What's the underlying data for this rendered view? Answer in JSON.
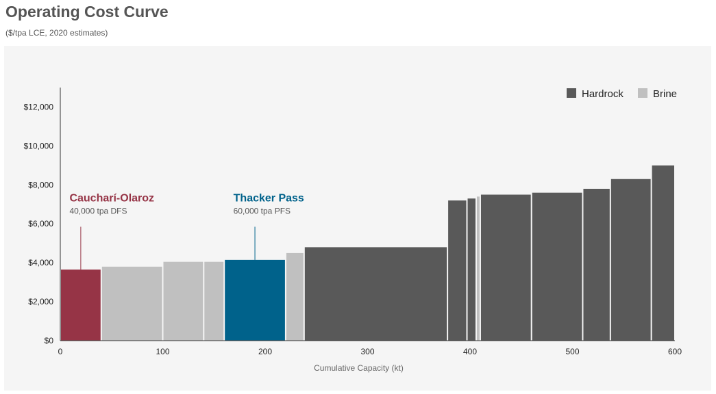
{
  "title": "Operating Cost Curve",
  "subtitle": "($/tpa LCE, 2020 estimates)",
  "chart_data": {
    "type": "bar",
    "variant": "cost-curve",
    "xlabel": "Cumulative Capacity (kt)",
    "ylabel": "",
    "xlim": [
      0,
      600
    ],
    "ylim": [
      0,
      13000
    ],
    "x_ticks": [
      0,
      100,
      200,
      300,
      400,
      500,
      600
    ],
    "y_ticks": [
      0,
      2000,
      4000,
      6000,
      8000,
      10000,
      12000
    ],
    "x_tick_labels": [
      "0",
      "100",
      "200",
      "300",
      "400",
      "500",
      "600"
    ],
    "y_tick_labels": [
      "$0",
      "$2,000",
      "$4,000",
      "$6,000",
      "$8,000",
      "$10,000",
      "$12,000"
    ],
    "grid": false,
    "legend_position": "top-right",
    "legend": [
      {
        "name": "Hardrock",
        "color": "#595959"
      },
      {
        "name": "Brine",
        "color": "#c0c0c0"
      }
    ],
    "colors": {
      "Hardrock": "#595959",
      "Brine": "#c0c0c0",
      "highlight_cauchari": "#963446",
      "highlight_thacker": "#00628b"
    },
    "bars": [
      {
        "x0": 0,
        "x1": 40,
        "value": 3650,
        "category": "Brine",
        "highlight": "highlight_cauchari"
      },
      {
        "x0": 40,
        "x1": 100,
        "value": 3800,
        "category": "Brine"
      },
      {
        "x0": 100,
        "x1": 140,
        "value": 4050,
        "category": "Brine"
      },
      {
        "x0": 140,
        "x1": 160,
        "value": 4050,
        "category": "Brine"
      },
      {
        "x0": 160,
        "x1": 220,
        "value": 4150,
        "category": "Hardrock",
        "highlight": "highlight_thacker"
      },
      {
        "x0": 220,
        "x1": 238,
        "value": 4500,
        "category": "Brine"
      },
      {
        "x0": 238,
        "x1": 378,
        "value": 4800,
        "category": "Hardrock"
      },
      {
        "x0": 378,
        "x1": 397,
        "value": 7200,
        "category": "Hardrock"
      },
      {
        "x0": 397,
        "x1": 406,
        "value": 7300,
        "category": "Hardrock"
      },
      {
        "x0": 406,
        "x1": 410,
        "value": 7400,
        "category": "Brine"
      },
      {
        "x0": 410,
        "x1": 460,
        "value": 7500,
        "category": "Hardrock"
      },
      {
        "x0": 460,
        "x1": 510,
        "value": 7600,
        "category": "Hardrock"
      },
      {
        "x0": 510,
        "x1": 537,
        "value": 7800,
        "category": "Hardrock"
      },
      {
        "x0": 537,
        "x1": 577,
        "value": 8300,
        "category": "Hardrock"
      },
      {
        "x0": 577,
        "x1": 600,
        "value": 9000,
        "category": "Hardrock"
      }
    ],
    "annotations": [
      {
        "name": "Cauchari-Olaroz",
        "title": "Caucharí-Olaroz",
        "subtitle": "40,000 tpa DFS",
        "x": 20,
        "color": "#963446",
        "label_x": 9,
        "label_value": 7150,
        "leader_top_value": 5850,
        "leader_bottom_value": 3650
      },
      {
        "name": "Thacker Pass",
        "title": "Thacker Pass",
        "subtitle": "60,000 tpa PFS",
        "x": 190,
        "color": "#00628b",
        "label_x": 169,
        "label_value": 7150,
        "leader_top_value": 5850,
        "leader_bottom_value": 4150
      }
    ]
  }
}
